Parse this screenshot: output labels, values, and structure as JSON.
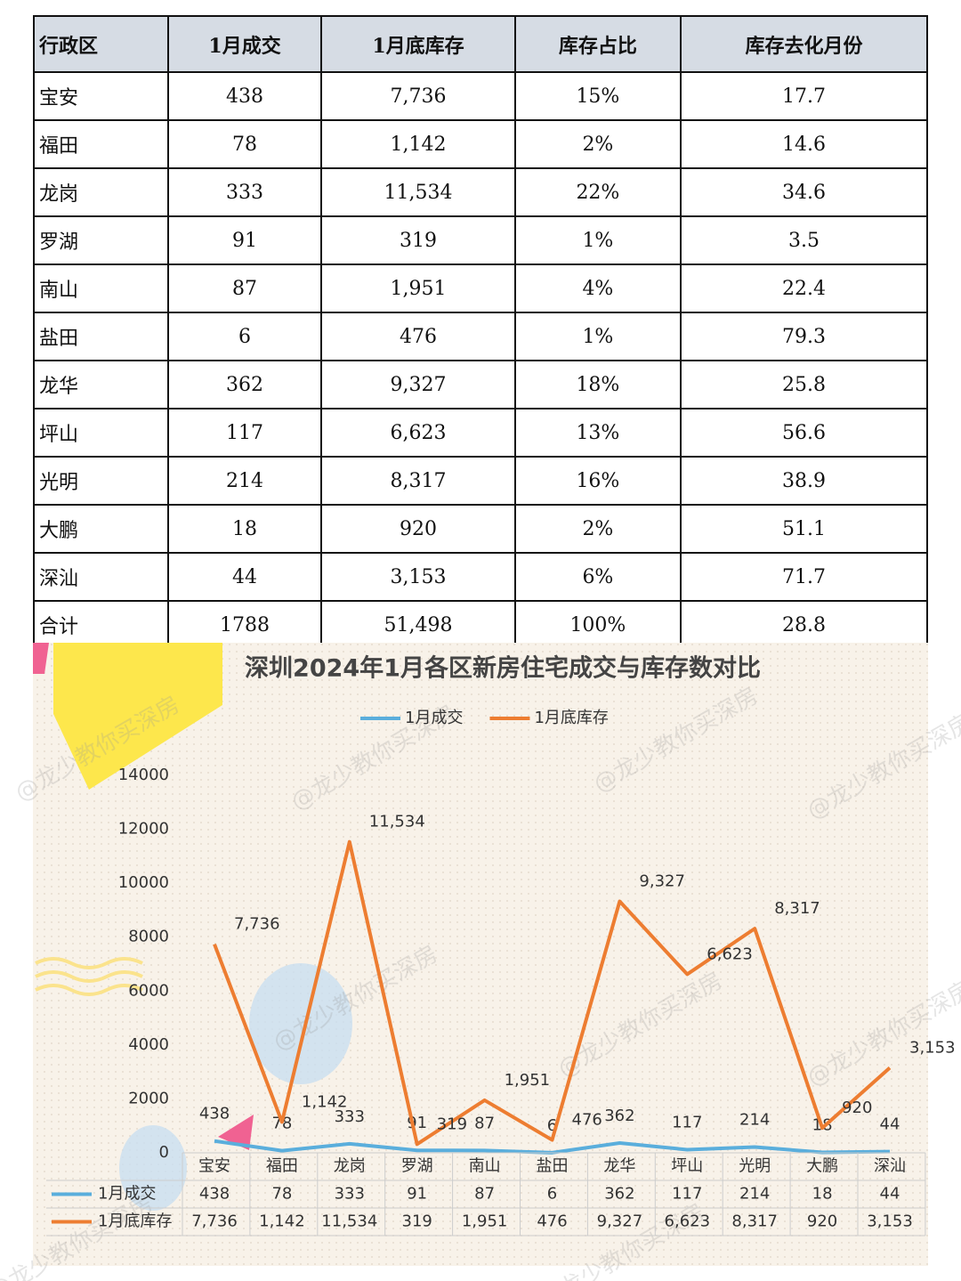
{
  "table": {
    "header": [
      "行政区",
      "1月成交",
      "1月底库存",
      "库存占比",
      "库存去化月份"
    ],
    "rows": [
      [
        "宝安",
        "438",
        "7,736",
        "15%",
        "17.7"
      ],
      [
        "福田",
        "78",
        "1,142",
        "2%",
        "14.6"
      ],
      [
        "龙岗",
        "333",
        "11,534",
        "22%",
        "34.6"
      ],
      [
        "罗湖",
        "91",
        "319",
        "1%",
        "3.5"
      ],
      [
        "南山",
        "87",
        "1,951",
        "4%",
        "22.4"
      ],
      [
        "盐田",
        "6",
        "476",
        "1%",
        "79.3"
      ],
      [
        "龙华",
        "362",
        "9,327",
        "18%",
        "25.8"
      ],
      [
        "坪山",
        "117",
        "6,623",
        "13%",
        "56.6"
      ],
      [
        "光明",
        "214",
        "8,317",
        "16%",
        "38.9"
      ],
      [
        "大鹏",
        "18",
        "920",
        "2%",
        "51.1"
      ],
      [
        "深汕",
        "44",
        "3,153",
        "6%",
        "71.7"
      ],
      [
        "合计",
        "1788",
        "51,498",
        "100%",
        "28.8"
      ]
    ]
  },
  "watermark": "@龙少教你买深房",
  "chart_data": {
    "type": "line",
    "title": "深圳2024年1月各区新房住宅成交与库存数对比",
    "categories": [
      "宝安",
      "福田",
      "龙岗",
      "罗湖",
      "南山",
      "盐田",
      "龙华",
      "坪山",
      "光明",
      "大鹏",
      "深汕"
    ],
    "series": [
      {
        "name": "1月成交",
        "color": "#5aaedc",
        "values": [
          438,
          78,
          333,
          91,
          87,
          6,
          362,
          117,
          214,
          18,
          44
        ]
      },
      {
        "name": "1月底库存",
        "color": "#ed7d31",
        "values": [
          7736,
          1142,
          11534,
          319,
          1951,
          476,
          9327,
          6623,
          8317,
          920,
          3153
        ],
        "value_labels": [
          "7,736",
          "1,142",
          "11,534",
          "319",
          "1,951",
          "476",
          "9,327",
          "6,623",
          "8,317",
          "920",
          "3,153"
        ]
      }
    ],
    "ylim": [
      0,
      14000
    ],
    "yticks": [
      0,
      2000,
      4000,
      6000,
      8000,
      10000,
      12000,
      14000
    ],
    "grid": false,
    "legend": "top"
  }
}
